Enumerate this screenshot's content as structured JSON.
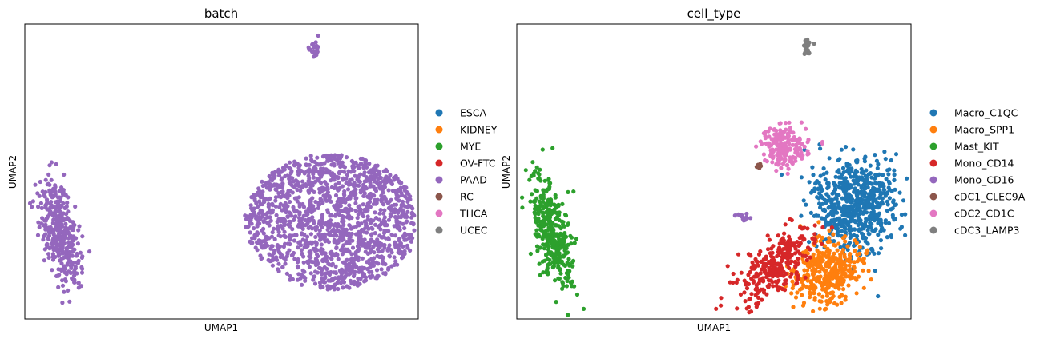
{
  "chart_data": [
    {
      "type": "scatter",
      "title": "batch",
      "xlabel": "UMAP1",
      "ylabel": "UMAP2",
      "grid": false,
      "ticks": false,
      "legend_position": "right",
      "legend": [
        {
          "name": "ESCA",
          "color": "#1f77b4"
        },
        {
          "name": "KIDNEY",
          "color": "#ff7f0e"
        },
        {
          "name": "MYE",
          "color": "#2ca02c"
        },
        {
          "name": "OV-FTC",
          "color": "#d62728"
        },
        {
          "name": "PAAD",
          "color": "#9467bd"
        },
        {
          "name": "RC",
          "color": "#8c564b"
        },
        {
          "name": "THCA",
          "color": "#e377c2"
        },
        {
          "name": "UCEC",
          "color": "#7f7f7f"
        }
      ],
      "clusters": [
        {
          "series": "PAAD",
          "shape": "ellipse",
          "cx": 0.09,
          "cy": 0.29,
          "rx": 0.045,
          "ry": 0.2,
          "tilt": 10,
          "n": 380
        },
        {
          "series": "PAAD",
          "shape": "blob",
          "cx": 0.78,
          "cy": 0.33,
          "rx": 0.22,
          "ry": 0.23,
          "n": 1500
        },
        {
          "series": "PAAD",
          "shape": "ellipse",
          "cx": 0.575,
          "cy": 0.345,
          "rx": 0.025,
          "ry": 0.012,
          "tilt": -20,
          "n": 14
        },
        {
          "series": "PAAD",
          "shape": "ellipse",
          "cx": 0.735,
          "cy": 0.92,
          "rx": 0.012,
          "ry": 0.035,
          "tilt": 0,
          "n": 22
        }
      ]
    },
    {
      "type": "scatter",
      "title": "cell_type",
      "xlabel": "UMAP1",
      "ylabel": "UMAP2",
      "grid": false,
      "ticks": false,
      "legend_position": "right",
      "legend": [
        {
          "name": "Macro_C1QC",
          "color": "#1f77b4"
        },
        {
          "name": "Macro_SPP1",
          "color": "#ff7f0e"
        },
        {
          "name": "Mast_KIT",
          "color": "#2ca02c"
        },
        {
          "name": "Mono_CD14",
          "color": "#d62728"
        },
        {
          "name": "Mono_CD16",
          "color": "#9467bd"
        },
        {
          "name": "cDC1_CLEC9A",
          "color": "#8c564b"
        },
        {
          "name": "cDC2_CD1C",
          "color": "#e377c2"
        },
        {
          "name": "cDC3_LAMP3",
          "color": "#7f7f7f"
        }
      ],
      "clusters": [
        {
          "series": "Mast_KIT",
          "shape": "ellipse",
          "cx": 0.09,
          "cy": 0.29,
          "rx": 0.045,
          "ry": 0.2,
          "tilt": 10,
          "n": 380
        },
        {
          "series": "Macro_C1QC",
          "shape": "ellipse",
          "cx": 0.86,
          "cy": 0.39,
          "rx": 0.11,
          "ry": 0.16,
          "tilt": 0,
          "n": 650
        },
        {
          "series": "Macro_SPP1",
          "shape": "ellipse",
          "cx": 0.79,
          "cy": 0.16,
          "rx": 0.085,
          "ry": 0.11,
          "tilt": -25,
          "n": 380
        },
        {
          "series": "Mono_CD14",
          "shape": "ellipse",
          "cx": 0.655,
          "cy": 0.18,
          "rx": 0.065,
          "ry": 0.14,
          "tilt": -35,
          "n": 300
        },
        {
          "series": "cDC2_CD1C",
          "shape": "ellipse",
          "cx": 0.68,
          "cy": 0.58,
          "rx": 0.06,
          "ry": 0.07,
          "tilt": 0,
          "n": 190
        },
        {
          "series": "Mono_CD16",
          "shape": "ellipse",
          "cx": 0.575,
          "cy": 0.345,
          "rx": 0.025,
          "ry": 0.012,
          "tilt": -20,
          "n": 14
        },
        {
          "series": "cDC1_CLEC9A",
          "shape": "ellipse",
          "cx": 0.615,
          "cy": 0.52,
          "rx": 0.008,
          "ry": 0.01,
          "tilt": 0,
          "n": 6
        },
        {
          "series": "cDC3_LAMP3",
          "shape": "ellipse",
          "cx": 0.735,
          "cy": 0.92,
          "rx": 0.012,
          "ry": 0.035,
          "tilt": 0,
          "n": 22
        }
      ]
    }
  ]
}
